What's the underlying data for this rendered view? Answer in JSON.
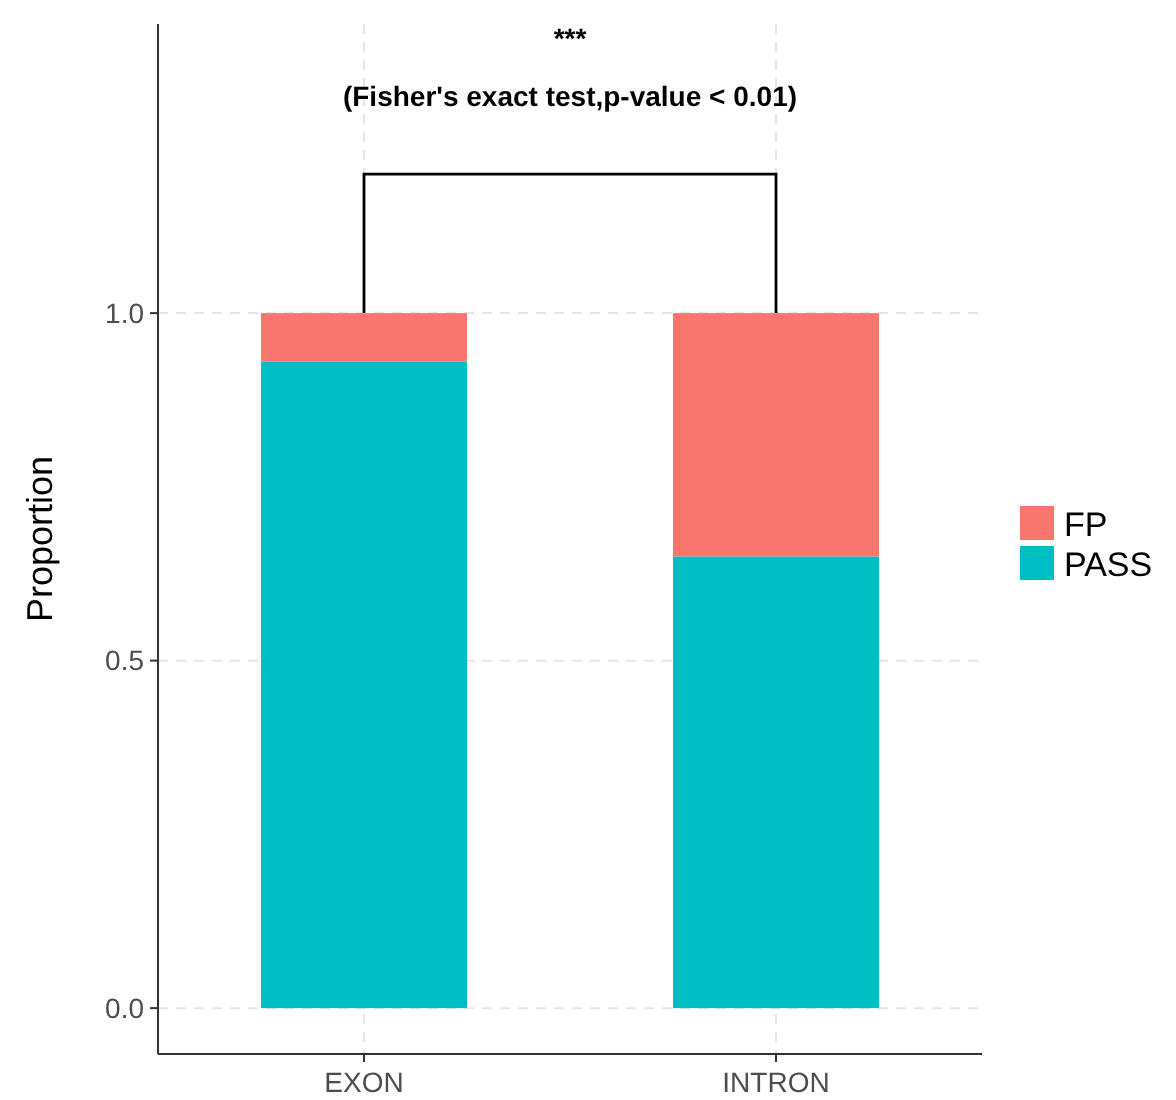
{
  "chart_data": {
    "type": "bar",
    "ylabel": "Proportion",
    "categories": [
      "EXON",
      "INTRON"
    ],
    "stacked": true,
    "series": [
      {
        "name": "PASS",
        "color": "#00bfc4",
        "values": [
          0.93,
          0.65
        ]
      },
      {
        "name": "FP",
        "color": "#f8766d",
        "values": [
          0.07,
          0.35
        ]
      }
    ],
    "ylim": [
      -0.066,
      1.416
    ],
    "yticks": [
      {
        "value": 0,
        "label": "0.0"
      },
      {
        "value": 0.5,
        "label": "0.5"
      },
      {
        "value": 1,
        "label": "1.0"
      }
    ],
    "annotations": [
      "***",
      "(Fisher's exact test,p-value < 0.01)"
    ],
    "grid": true,
    "legend": "right"
  }
}
